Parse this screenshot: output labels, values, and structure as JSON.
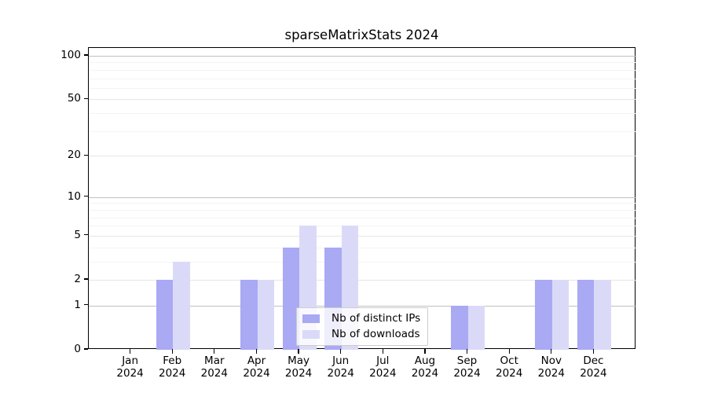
{
  "chart_data": {
    "type": "bar",
    "title": "sparseMatrixStats 2024",
    "year_label": "2024",
    "categories": [
      "Jan",
      "Feb",
      "Mar",
      "Apr",
      "May",
      "Jun",
      "Jul",
      "Aug",
      "Sep",
      "Oct",
      "Nov",
      "Dec"
    ],
    "series": [
      {
        "name": "Nb of distinct IPs",
        "color": "#a9a9f4",
        "values": [
          0,
          2,
          0,
          2,
          4,
          4,
          0,
          0,
          1,
          0,
          2,
          2
        ]
      },
      {
        "name": "Nb of downloads",
        "color": "#dadaf8",
        "values": [
          0,
          3,
          0,
          2,
          6,
          6,
          0,
          0,
          1,
          0,
          2,
          2
        ]
      }
    ],
    "xlabel": "",
    "ylabel": "",
    "y_scale": "log1p",
    "ylim": [
      0,
      113
    ],
    "y_major_ticks": [
      0,
      1,
      2,
      5,
      10,
      20,
      50,
      100
    ],
    "y_minor_ticks": [
      3,
      4,
      6,
      7,
      8,
      9,
      30,
      40,
      60,
      70,
      80,
      90
    ],
    "y_decade_lines": [
      1,
      10,
      100
    ],
    "grid": true,
    "legend_position": "lower-center"
  },
  "colors": {
    "background": "#ffffff",
    "axis_frame": "#000000",
    "text": "#000000",
    "grid_decade": "#c0c0c0",
    "grid_major": "#e6e6e6",
    "grid_minor": "#f4f4f4",
    "legend_border": "#cccccc"
  }
}
